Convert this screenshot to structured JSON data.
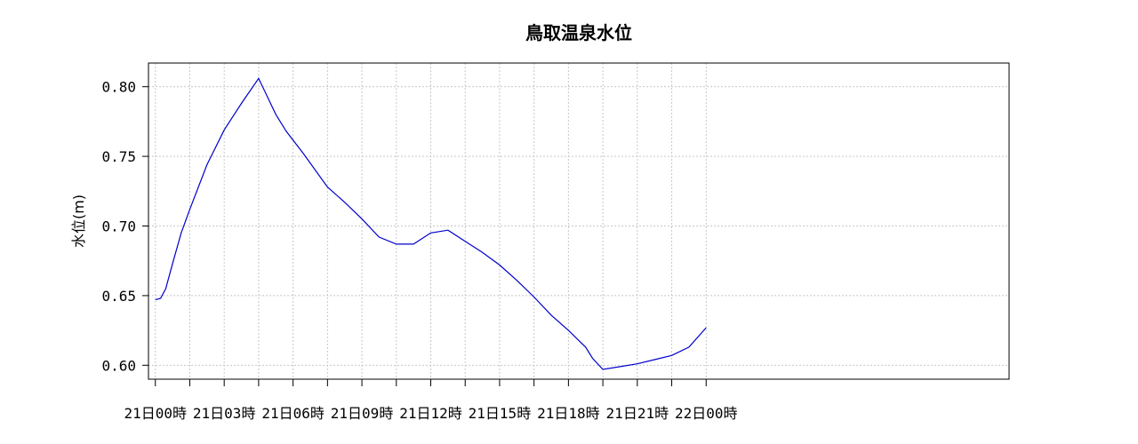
{
  "chart_data": {
    "type": "line",
    "title": "鳥取温泉水位",
    "ylabel": "水位(m)",
    "xlabel": "",
    "ylim": [
      0.59,
      0.817
    ],
    "xlim": [
      -0.2,
      24.8
    ],
    "grid": true,
    "yticks": [
      {
        "value": 0.6,
        "label": "0.60"
      },
      {
        "value": 0.65,
        "label": "0.65"
      },
      {
        "value": 0.7,
        "label": "0.70"
      },
      {
        "value": 0.75,
        "label": "0.75"
      },
      {
        "value": 0.8,
        "label": "0.80"
      }
    ],
    "xticks": [
      {
        "value": 0,
        "label": "21日00時"
      },
      {
        "value": 1,
        "label": ""
      },
      {
        "value": 2,
        "label": "21日03時"
      },
      {
        "value": 3,
        "label": ""
      },
      {
        "value": 4,
        "label": "21日06時"
      },
      {
        "value": 5,
        "label": ""
      },
      {
        "value": 6,
        "label": "21日09時"
      },
      {
        "value": 7,
        "label": ""
      },
      {
        "value": 8,
        "label": "21日12時"
      },
      {
        "value": 9,
        "label": ""
      },
      {
        "value": 10,
        "label": "21日15時"
      },
      {
        "value": 11,
        "label": ""
      },
      {
        "value": 12,
        "label": "21日18時"
      },
      {
        "value": 13,
        "label": ""
      },
      {
        "value": 14,
        "label": "21日21時"
      },
      {
        "value": 15,
        "label": ""
      },
      {
        "value": 16,
        "label": "22日00時"
      }
    ],
    "series": [
      {
        "color": "#0000cc",
        "x": [
          0,
          0.15,
          0.3,
          0.5,
          0.75,
          1.0,
          1.5,
          2.0,
          2.5,
          3.0,
          3.5,
          3.8,
          4.3,
          5.0,
          5.5,
          6.0,
          6.5,
          7.0,
          7.5,
          8.0,
          8.5,
          9.0,
          9.5,
          10.0,
          10.5,
          11.0,
          11.5,
          12.0,
          12.5,
          12.7,
          13.0,
          13.5,
          14.0,
          14.5,
          15.0,
          15.5,
          16.0
        ],
        "values": [
          0.647,
          0.648,
          0.655,
          0.673,
          0.695,
          0.712,
          0.744,
          0.769,
          0.788,
          0.806,
          0.78,
          0.768,
          0.752,
          0.728,
          0.717,
          0.705,
          0.692,
          0.687,
          0.687,
          0.695,
          0.697,
          0.689,
          0.681,
          0.672,
          0.661,
          0.649,
          0.636,
          0.625,
          0.613,
          0.605,
          0.597,
          0.599,
          0.601,
          0.604,
          0.607,
          0.613,
          0.627
        ]
      }
    ]
  }
}
